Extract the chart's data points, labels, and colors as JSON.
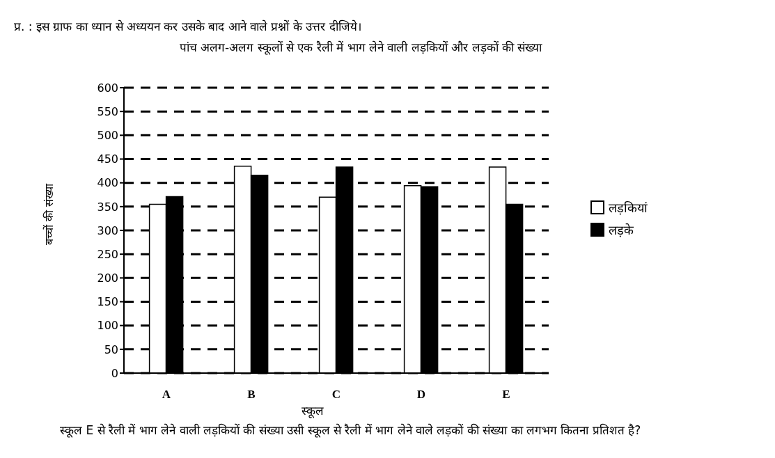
{
  "chart_data": {
    "type": "bar",
    "title": "पांच अलग-अलग स्कूलों से एक रैली में भाग लेने वाली लड़कियों और लड़कों की संख्या",
    "xlabel": "स्कूल",
    "ylabel": "बच्चों की संख्या",
    "annotations": [
      "प्र.  : इस ग्राफ का ध्यान से अध्ययन कर उसके बाद आने वाले प्रश्नों के उत्तर दीजिये।",
      "स्कूल E से रैली में भाग लेने वाली लड़कियों की संख्या उसी स्कूल से रैली में भाग लेने वाले लड़कों की संख्या का लगभग कितना प्रतिशत है?"
    ],
    "categories": [
      "A",
      "B",
      "C",
      "D",
      "E"
    ],
    "series": [
      {
        "name": "लड़कियां",
        "color": "#ffffff",
        "values": [
          355,
          435,
          370,
          394,
          433
        ]
      },
      {
        "name": "लड़के",
        "color": "#000000",
        "values": [
          371,
          416,
          433,
          392,
          355
        ]
      }
    ],
    "ylim": [
      0,
      600
    ],
    "yticks": [
      0,
      50,
      100,
      150,
      200,
      250,
      300,
      350,
      400,
      450,
      500,
      550,
      600
    ],
    "grid": "y",
    "legend": "right"
  }
}
